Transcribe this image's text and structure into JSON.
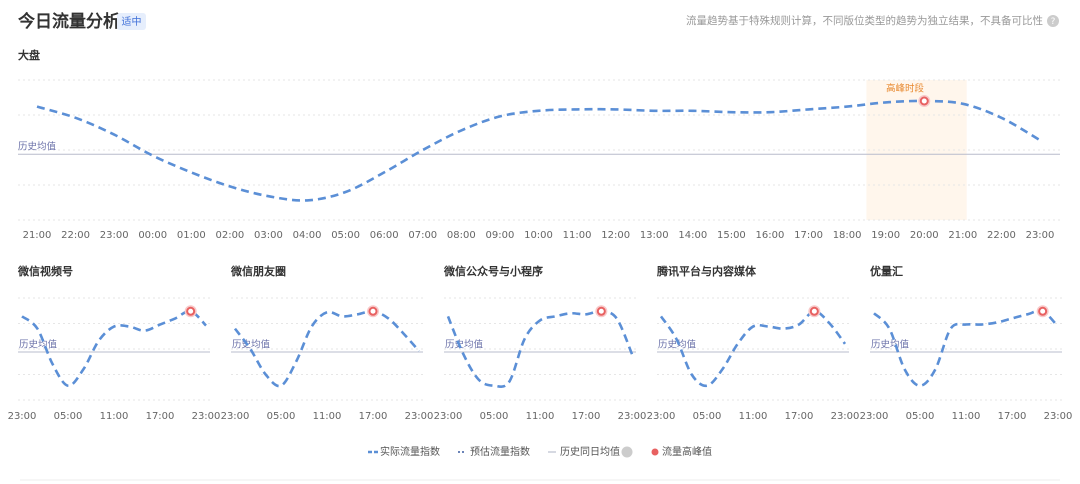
{
  "header": {
    "title": "今日流量分析",
    "badge": "适中",
    "note": "流量趋势基于特殊规则计算，不同版位类型的趋势为独立结果，不具备可比性"
  },
  "chart_data": [
    {
      "type": "line",
      "title": "大盘",
      "categories": [
        "21:00",
        "22:00",
        "23:00",
        "00:00",
        "01:00",
        "02:00",
        "03:00",
        "04:00",
        "05:00",
        "06:00",
        "07:00",
        "08:00",
        "09:00",
        "10:00",
        "11:00",
        "12:00",
        "13:00",
        "14:00",
        "15:00",
        "16:00",
        "17:00",
        "18:00",
        "19:00",
        "20:00",
        "21:00",
        "22:00",
        "23:00"
      ],
      "series": [
        {
          "name": "实际流量指数",
          "color": "#5b8fd6",
          "values": [
            81,
            73,
            61,
            46,
            34,
            24,
            17,
            14,
            20,
            34,
            50,
            64,
            74,
            78,
            79,
            79,
            78,
            78,
            77,
            77,
            79,
            81,
            84,
            85,
            83,
            73,
            57
          ]
        }
      ],
      "ylim": [
        0,
        100
      ],
      "yticks": [
        0,
        25,
        50,
        75,
        100
      ],
      "grid": true,
      "reference": {
        "label": "历史均值",
        "value": 47
      },
      "peak_index": 23,
      "annotation": "高峰时段"
    },
    {
      "type": "line",
      "title": "微信视频号",
      "categories": [
        "23:00",
        null,
        null,
        "05:00",
        null,
        null,
        "11:00",
        null,
        null,
        "17:00",
        null,
        null,
        "23:00"
      ],
      "series": [
        {
          "name": "实际流量指数",
          "color": "#5b8fd6",
          "values": [
            82,
            70,
            35,
            14,
            30,
            58,
            72,
            72,
            68,
            74,
            80,
            87,
            73
          ]
        }
      ],
      "ylim": [
        0,
        100
      ],
      "yticks": [
        0,
        25,
        50,
        75,
        100
      ],
      "grid": true,
      "reference": {
        "label": "历史均值",
        "value": 47
      },
      "peak_index": 11
    },
    {
      "type": "line",
      "title": "微信朋友圈",
      "categories": [
        "23:00",
        null,
        null,
        "05:00",
        null,
        null,
        "11:00",
        null,
        null,
        "17:00",
        null,
        null,
        "23:00"
      ],
      "series": [
        {
          "name": "实际流量指数",
          "color": "#5b8fd6",
          "values": [
            70,
            50,
            25,
            14,
            38,
            72,
            86,
            82,
            84,
            87,
            80,
            65,
            48
          ]
        }
      ],
      "ylim": [
        0,
        100
      ],
      "yticks": [
        0,
        25,
        50,
        75,
        100
      ],
      "grid": true,
      "reference": {
        "label": "历史均值",
        "value": 47
      },
      "peak_index": 9
    },
    {
      "type": "line",
      "title": "微信公众号与小程序",
      "categories": [
        "23:00",
        null,
        null,
        "05:00",
        null,
        null,
        "11:00",
        null,
        null,
        "17:00",
        null,
        null,
        "23:00"
      ],
      "series": [
        {
          "name": "实际流量指数",
          "color": "#5b8fd6",
          "values": [
            82,
            45,
            20,
            14,
            18,
            60,
            78,
            82,
            85,
            84,
            87,
            80,
            45
          ]
        }
      ],
      "ylim": [
        0,
        100
      ],
      "yticks": [
        0,
        25,
        50,
        75,
        100
      ],
      "grid": true,
      "reference": {
        "label": "历史均值",
        "value": 47
      },
      "peak_index": 10
    },
    {
      "type": "line",
      "title": "腾讯平台与内容媒体",
      "categories": [
        "23:00",
        null,
        null,
        "05:00",
        null,
        null,
        "11:00",
        null,
        null,
        "17:00",
        null,
        null,
        "23:00"
      ],
      "series": [
        {
          "name": "实际流量指数",
          "color": "#5b8fd6",
          "values": [
            82,
            60,
            25,
            14,
            30,
            55,
            72,
            72,
            70,
            74,
            87,
            75,
            55
          ]
        }
      ],
      "ylim": [
        0,
        100
      ],
      "yticks": [
        0,
        25,
        50,
        75,
        100
      ],
      "grid": true,
      "reference": {
        "label": "历史均值",
        "value": 47
      },
      "peak_index": 10
    },
    {
      "type": "line",
      "title": "优量汇",
      "categories": [
        "23:00",
        null,
        null,
        "05:00",
        null,
        null,
        "11:00",
        null,
        null,
        "17:00",
        null,
        null,
        "23:00"
      ],
      "series": [
        {
          "name": "实际流量指数",
          "color": "#5b8fd6",
          "values": [
            85,
            70,
            30,
            14,
            30,
            70,
            74,
            74,
            76,
            80,
            84,
            87,
            72
          ]
        }
      ],
      "ylim": [
        0,
        100
      ],
      "yticks": [
        0,
        25,
        50,
        75,
        100
      ],
      "grid": true,
      "reference": {
        "label": "历史均值",
        "value": 47
      },
      "peak_index": 11
    }
  ],
  "legend": [
    "实际流量指数",
    "预估流量指数",
    "历史同日均值",
    "流量高峰值"
  ]
}
